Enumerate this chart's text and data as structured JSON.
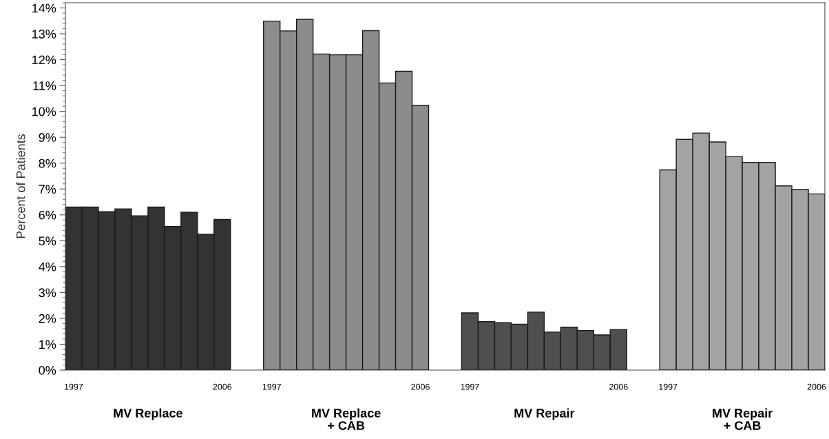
{
  "chart_data": {
    "type": "bar",
    "ylabel": "Percent of Patients",
    "categories": [
      "1997",
      null,
      null,
      null,
      null,
      null,
      null,
      null,
      null,
      "2006",
      null,
      null,
      "1997",
      null,
      null,
      null,
      null,
      null,
      null,
      null,
      null,
      "2006",
      null,
      null,
      "1997",
      null,
      null,
      null,
      null,
      null,
      null,
      null,
      null,
      "2006",
      null,
      null,
      "1997",
      null,
      null,
      null,
      null,
      null,
      null,
      null,
      null,
      "2006"
    ],
    "values": [
      6.3,
      6.3,
      6.12,
      6.23,
      5.96,
      6.3,
      5.55,
      6.1,
      5.25,
      5.82,
      null,
      null,
      13.49,
      13.11,
      13.56,
      12.22,
      12.19,
      12.19,
      13.12,
      11.1,
      11.55,
      10.23,
      null,
      null,
      2.21,
      1.87,
      1.83,
      1.77,
      2.24,
      1.47,
      1.66,
      1.53,
      1.36,
      1.57,
      null,
      null,
      7.74,
      8.92,
      9.16,
      8.82,
      8.25,
      8.03,
      8.03,
      7.12,
      6.99,
      6.81
    ],
    "colors": [
      "#333333",
      "#333333",
      "#333333",
      "#333333",
      "#333333",
      "#333333",
      "#333333",
      "#333333",
      "#333333",
      "#333333",
      null,
      null,
      "#8c8c8c",
      "#8c8c8c",
      "#8c8c8c",
      "#8c8c8c",
      "#8c8c8c",
      "#8c8c8c",
      "#8c8c8c",
      "#8c8c8c",
      "#8c8c8c",
      "#8c8c8c",
      null,
      null,
      "#4f4f4f",
      "#4f4f4f",
      "#4f4f4f",
      "#4f4f4f",
      "#4f4f4f",
      "#4f4f4f",
      "#4f4f4f",
      "#4f4f4f",
      "#4f4f4f",
      "#4f4f4f",
      null,
      null,
      "#a3a3a3",
      "#a3a3a3",
      "#a3a3a3",
      "#a3a3a3",
      "#a3a3a3",
      "#a3a3a3",
      "#a3a3a3",
      "#a3a3a3",
      "#a3a3a3",
      "#a3a3a3"
    ],
    "ylim": [
      0,
      14.2
    ],
    "yticks": [
      {
        "value": 0,
        "label": "0%"
      },
      {
        "value": 1,
        "label": "1%"
      },
      {
        "value": 2,
        "label": "2%"
      },
      {
        "value": 3,
        "label": "3%"
      },
      {
        "value": 4,
        "label": "4%"
      },
      {
        "value": 5,
        "label": "5%"
      },
      {
        "value": 6,
        "label": "6%"
      },
      {
        "value": 7,
        "label": "7%"
      },
      {
        "value": 8,
        "label": "8%"
      },
      {
        "value": 9,
        "label": "9%"
      },
      {
        "value": 10,
        "label": "10%"
      },
      {
        "value": 11,
        "label": "11%"
      },
      {
        "value": 12,
        "label": "12%"
      },
      {
        "value": 13,
        "label": "13%"
      },
      {
        "value": 14,
        "label": "14%"
      }
    ],
    "annotations": [
      "MV Replace",
      "MV Replace\n+ CAB",
      "MV Repair",
      "MV Repair\n+ CAB"
    ],
    "grid": false
  }
}
